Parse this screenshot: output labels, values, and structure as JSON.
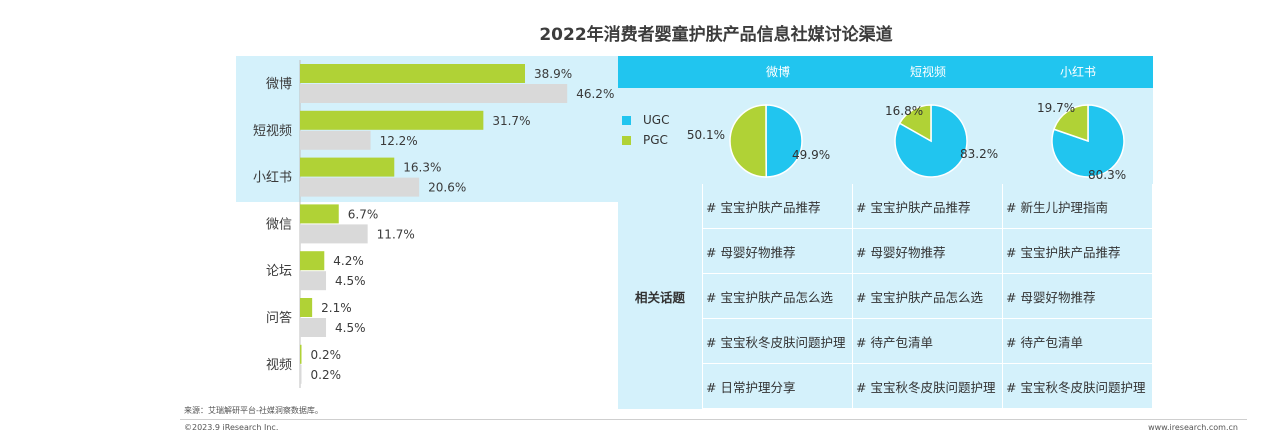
{
  "title": "2022年消费者婴童护肤产品信息社媒讨论渠道",
  "colors": {
    "highlight": "#d4f1fb",
    "header": "#21c5ef",
    "series1": "#b0d236",
    "series2": "#d9d9d9",
    "ugc": "#21c5ef",
    "pgc": "#b0d236"
  },
  "chart_data": [
    {
      "type": "bar",
      "orientation": "horizontal",
      "categories": [
        "微博",
        "短视频",
        "小红书",
        "微信",
        "论坛",
        "问答",
        "视频"
      ],
      "series": [
        {
          "values": [
            38.9,
            31.7,
            16.3,
            6.7,
            4.2,
            2.1,
            0.2
          ],
          "labels": [
            "38.9%",
            "31.7%",
            "16.3%",
            "6.7%",
            "4.2%",
            "2.1%",
            "0.2%"
          ]
        },
        {
          "values": [
            46.2,
            12.2,
            20.6,
            11.7,
            4.5,
            4.5,
            0.2
          ],
          "labels": [
            "46.2%",
            "12.2%",
            "20.6%",
            "11.7%",
            "4.5%",
            "4.5%",
            "0.2%"
          ]
        }
      ],
      "xlim": [
        0,
        50
      ]
    },
    {
      "type": "pie",
      "channel": "微博",
      "slices": [
        {
          "name": "UGC",
          "value": 49.9,
          "label": "49.9%"
        },
        {
          "name": "PGC",
          "value": 50.1,
          "label": "50.1%"
        }
      ]
    },
    {
      "type": "pie",
      "channel": "短视频",
      "slices": [
        {
          "name": "UGC",
          "value": 83.2,
          "label": "83.2%"
        },
        {
          "name": "PGC",
          "value": 16.8,
          "label": "16.8%"
        }
      ]
    },
    {
      "type": "pie",
      "channel": "小红书",
      "slices": [
        {
          "name": "UGC",
          "value": 80.3,
          "label": "80.3%"
        },
        {
          "name": "PGC",
          "value": 19.7,
          "label": "19.7%"
        }
      ]
    }
  ],
  "table": {
    "columns": [
      "微博",
      "短视频",
      "小红书"
    ],
    "row_label": "相关话题",
    "rows": [
      [
        "# 宝宝护肤产品推荐",
        "# 宝宝护肤产品推荐",
        "# 新生儿护理指南"
      ],
      [
        "# 母婴好物推荐",
        "# 母婴好物推荐",
        "# 宝宝护肤产品推荐"
      ],
      [
        "# 宝宝护肤产品怎么选",
        "# 宝宝护肤产品怎么选",
        "# 母婴好物推荐"
      ],
      [
        "# 宝宝秋冬皮肤问题护理",
        "# 待产包清单",
        "# 待产包清单"
      ],
      [
        "# 日常护理分享",
        "# 宝宝秋冬皮肤问题护理",
        "# 宝宝秋冬皮肤问题护理"
      ]
    ]
  },
  "legend": [
    {
      "name": "UGC",
      "color": "#21c5ef"
    },
    {
      "name": "PGC",
      "color": "#b0d236"
    }
  ],
  "footer": {
    "source": "来源：艾瑞解研平台-社媒洞察数据库。",
    "copyright": "©2023.9 iResearch Inc.",
    "website": "www.iresearch.com.cn"
  }
}
